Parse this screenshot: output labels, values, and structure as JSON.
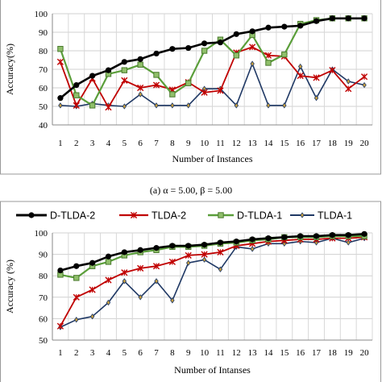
{
  "caption": "(a) α = 5.00,  β = 5.00",
  "legend": [
    "D-TLDA-2",
    "TLDA-2",
    "D-TLDA-1",
    "TLDA-1"
  ],
  "series_style": {
    "D-TLDA-2": {
      "color": "#000000",
      "marker": "circle"
    },
    "TLDA-2": {
      "color": "#c00000",
      "marker": "x"
    },
    "D-TLDA-1": {
      "color": "#5a9e3a",
      "marker": "square"
    },
    "TLDA-1": {
      "color": "#1f3864",
      "marker": "diamond"
    }
  },
  "chart_data": [
    {
      "type": "line",
      "title": "",
      "xlabel": "Number of Instances",
      "ylabel": "Accuracy(%)",
      "x": [
        1,
        2,
        3,
        4,
        5,
        6,
        7,
        8,
        9,
        10,
        11,
        12,
        13,
        14,
        15,
        16,
        17,
        18,
        19,
        20
      ],
      "ylim": [
        40,
        100
      ],
      "yticks": [
        40,
        50,
        60,
        70,
        80,
        90,
        100
      ],
      "grid": true,
      "series": [
        {
          "name": "D-TLDA-2",
          "values": [
            54.5,
            61.5,
            66.5,
            69.5,
            74,
            75.5,
            78.5,
            81,
            81.5,
            84,
            84.5,
            89,
            90.5,
            92.5,
            93,
            93.5,
            96,
            97.5,
            97.5,
            97.5
          ]
        },
        {
          "name": "TLDA-2",
          "values": [
            74,
            50.5,
            65,
            49.5,
            64,
            60,
            61.5,
            59,
            63,
            57.5,
            58.5,
            79,
            82,
            77.5,
            77,
            66.5,
            65.5,
            69.5,
            59.5,
            66
          ]
        },
        {
          "name": "D-TLDA-1",
          "values": [
            81,
            56,
            50.5,
            67.5,
            69.5,
            72.5,
            67,
            56.5,
            62.5,
            80,
            86,
            77.5,
            88.5,
            73.5,
            78,
            94.5,
            96.5,
            97.5,
            97.5,
            97.5
          ]
        },
        {
          "name": "TLDA-1",
          "values": [
            50.5,
            50,
            51.5,
            50.5,
            50,
            56.5,
            50.5,
            50.5,
            50.5,
            59.5,
            59.5,
            50.5,
            73,
            50.5,
            50.5,
            71.5,
            54.5,
            70,
            63.5,
            61.5
          ]
        }
      ]
    },
    {
      "type": "line",
      "title": "",
      "xlabel": "Number of Intanses",
      "ylabel": "Accuracy (%)",
      "x": [
        1,
        2,
        3,
        4,
        5,
        6,
        7,
        8,
        9,
        10,
        11,
        12,
        13,
        14,
        15,
        16,
        17,
        18,
        19,
        20
      ],
      "ylim": [
        50,
        100
      ],
      "yticks": [
        50,
        60,
        70,
        80,
        90,
        100
      ],
      "grid": true,
      "legend_position": "top",
      "series": [
        {
          "name": "D-TLDA-2",
          "values": [
            82.5,
            84.5,
            86,
            89,
            91,
            92,
            93,
            94,
            94,
            94.5,
            95.5,
            96,
            97,
            97.5,
            98,
            98.5,
            98.5,
            99,
            99,
            99.5
          ]
        },
        {
          "name": "TLDA-2",
          "values": [
            56.5,
            70,
            73.5,
            78,
            81.5,
            83.5,
            84.5,
            86.5,
            89.5,
            90,
            91,
            94,
            95,
            96,
            96.5,
            97,
            97,
            97.5,
            97.5,
            98
          ]
        },
        {
          "name": "D-TLDA-1",
          "values": [
            80.5,
            79,
            84.5,
            86.5,
            89.5,
            91,
            92,
            93.5,
            93.5,
            94,
            95,
            95.5,
            96.5,
            97,
            98,
            98,
            98,
            98.5,
            98.5,
            98.5
          ]
        },
        {
          "name": "TLDA-1",
          "values": [
            56,
            59.5,
            61,
            67.5,
            77.5,
            70,
            77.5,
            68.5,
            86,
            87.5,
            83,
            93.5,
            92.5,
            95,
            95,
            96,
            95.5,
            97.5,
            95.5,
            97.5
          ]
        }
      ]
    }
  ]
}
